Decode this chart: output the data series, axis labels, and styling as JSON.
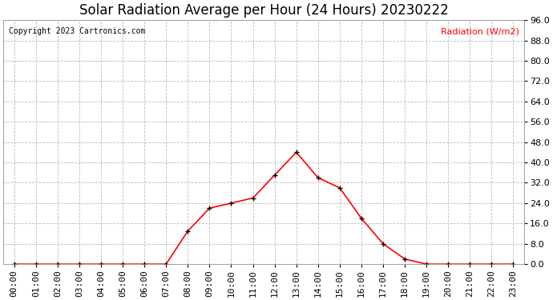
{
  "title": "Solar Radiation Average per Hour (24 Hours) 20230222",
  "copyright_text": "Copyright 2023 Cartronics.com",
  "ylabel": "Radiation (W/m2)",
  "hours": [
    "00:00",
    "01:00",
    "02:00",
    "03:00",
    "04:00",
    "05:00",
    "06:00",
    "07:00",
    "08:00",
    "09:00",
    "10:00",
    "11:00",
    "12:00",
    "13:00",
    "14:00",
    "15:00",
    "16:00",
    "17:00",
    "18:00",
    "19:00",
    "20:00",
    "21:00",
    "22:00",
    "23:00"
  ],
  "values": [
    0.0,
    0.0,
    0.0,
    0.0,
    0.0,
    0.0,
    0.0,
    0.0,
    13.0,
    22.0,
    24.0,
    26.0,
    35.0,
    44.0,
    34.0,
    30.0,
    18.0,
    8.0,
    2.0,
    0.0,
    0.0,
    0.0,
    0.0,
    0.0
  ],
  "line_color": "#ff0000",
  "marker_color": "#000000",
  "background_color": "#ffffff",
  "grid_color": "#bbbbbb",
  "title_fontsize": 12,
  "axis_fontsize": 8,
  "ylabel_color": "#ff0000",
  "copyright_color": "#000000",
  "ylim_min": 0.0,
  "ylim_max": 96.0,
  "ytick_step": 8.0
}
